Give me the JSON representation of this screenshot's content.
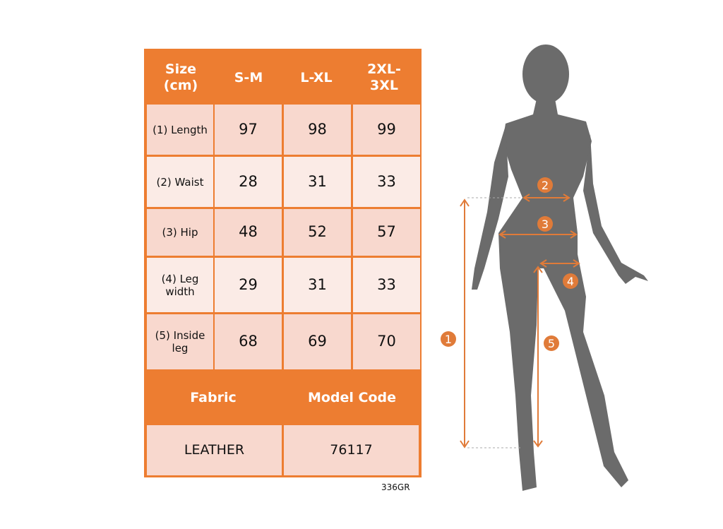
{
  "table": {
    "header": [
      "Size (cm)",
      "S-M",
      "L-XL",
      "2XL-3XL"
    ],
    "rows": [
      {
        "label": "(1) Length",
        "values": [
          "97",
          "98",
          "99"
        ]
      },
      {
        "label": "(2) Waist",
        "values": [
          "28",
          "31",
          "33"
        ]
      },
      {
        "label": "(3) Hip",
        "values": [
          "48",
          "52",
          "57"
        ]
      },
      {
        "label": "(4) Leg width",
        "values": [
          "29",
          "31",
          "33"
        ]
      },
      {
        "label": "(5) Inside leg",
        "values": [
          "68",
          "69",
          "70"
        ]
      }
    ],
    "fabric_label": "Fabric",
    "model_code_label": "Model Code",
    "fabric": "LEATHER",
    "model_code": "76117"
  },
  "code": "336GR",
  "markers": [
    "1",
    "2",
    "3",
    "4",
    "5"
  ],
  "colors": {
    "accent": "#ED7D31",
    "row_dark": "#F8D8CE",
    "row_light": "#FBEBE6",
    "silhouette": "#6B6B6B"
  }
}
